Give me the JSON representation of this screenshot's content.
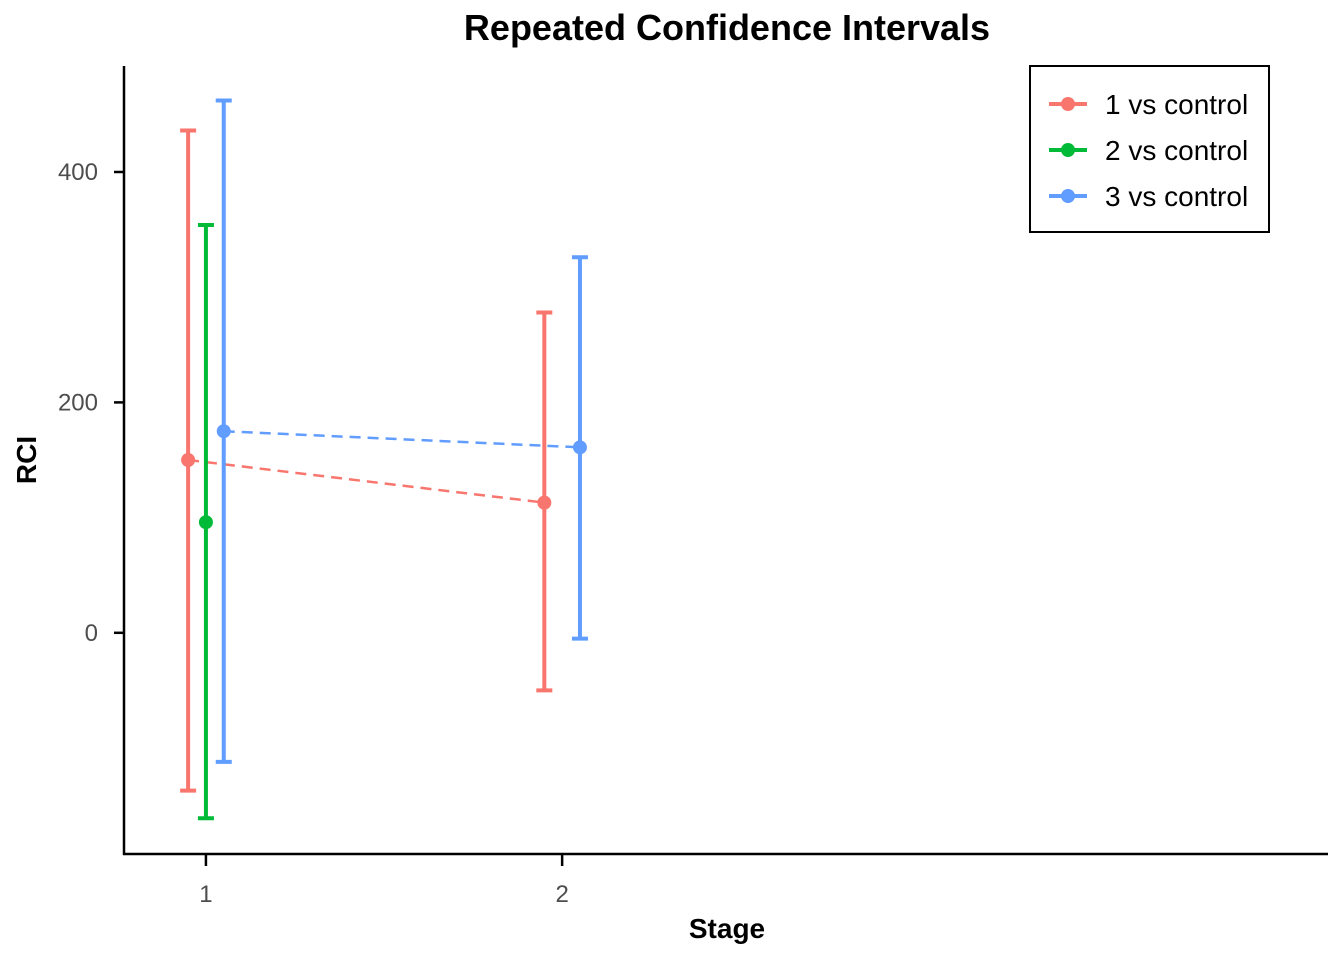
{
  "chart_data": {
    "type": "scatter",
    "title": "Repeated Confidence Intervals",
    "xlabel": "Stage",
    "ylabel": "RCI",
    "x_ticks": [
      "1",
      "2"
    ],
    "y_ticks": [
      0,
      200,
      400
    ],
    "xlim": [
      0.77,
      4.15
    ],
    "ylim": [
      -192,
      492
    ],
    "grid": false,
    "legend_position": "top-right",
    "series": [
      {
        "name": "1 vs control",
        "color": "#F8766D",
        "points": [
          {
            "stage": 1,
            "estimate": 150,
            "lower": -137,
            "upper": 436
          },
          {
            "stage": 2,
            "estimate": 113,
            "lower": -50,
            "upper": 278
          }
        ]
      },
      {
        "name": "2 vs control",
        "color": "#00BA38",
        "points": [
          {
            "stage": 1,
            "estimate": 96,
            "lower": -161,
            "upper": 354
          }
        ]
      },
      {
        "name": "3 vs control",
        "color": "#619CFF",
        "points": [
          {
            "stage": 1,
            "estimate": 175,
            "lower": -112,
            "upper": 462
          },
          {
            "stage": 2,
            "estimate": 161,
            "lower": -5,
            "upper": 326
          }
        ]
      }
    ]
  }
}
